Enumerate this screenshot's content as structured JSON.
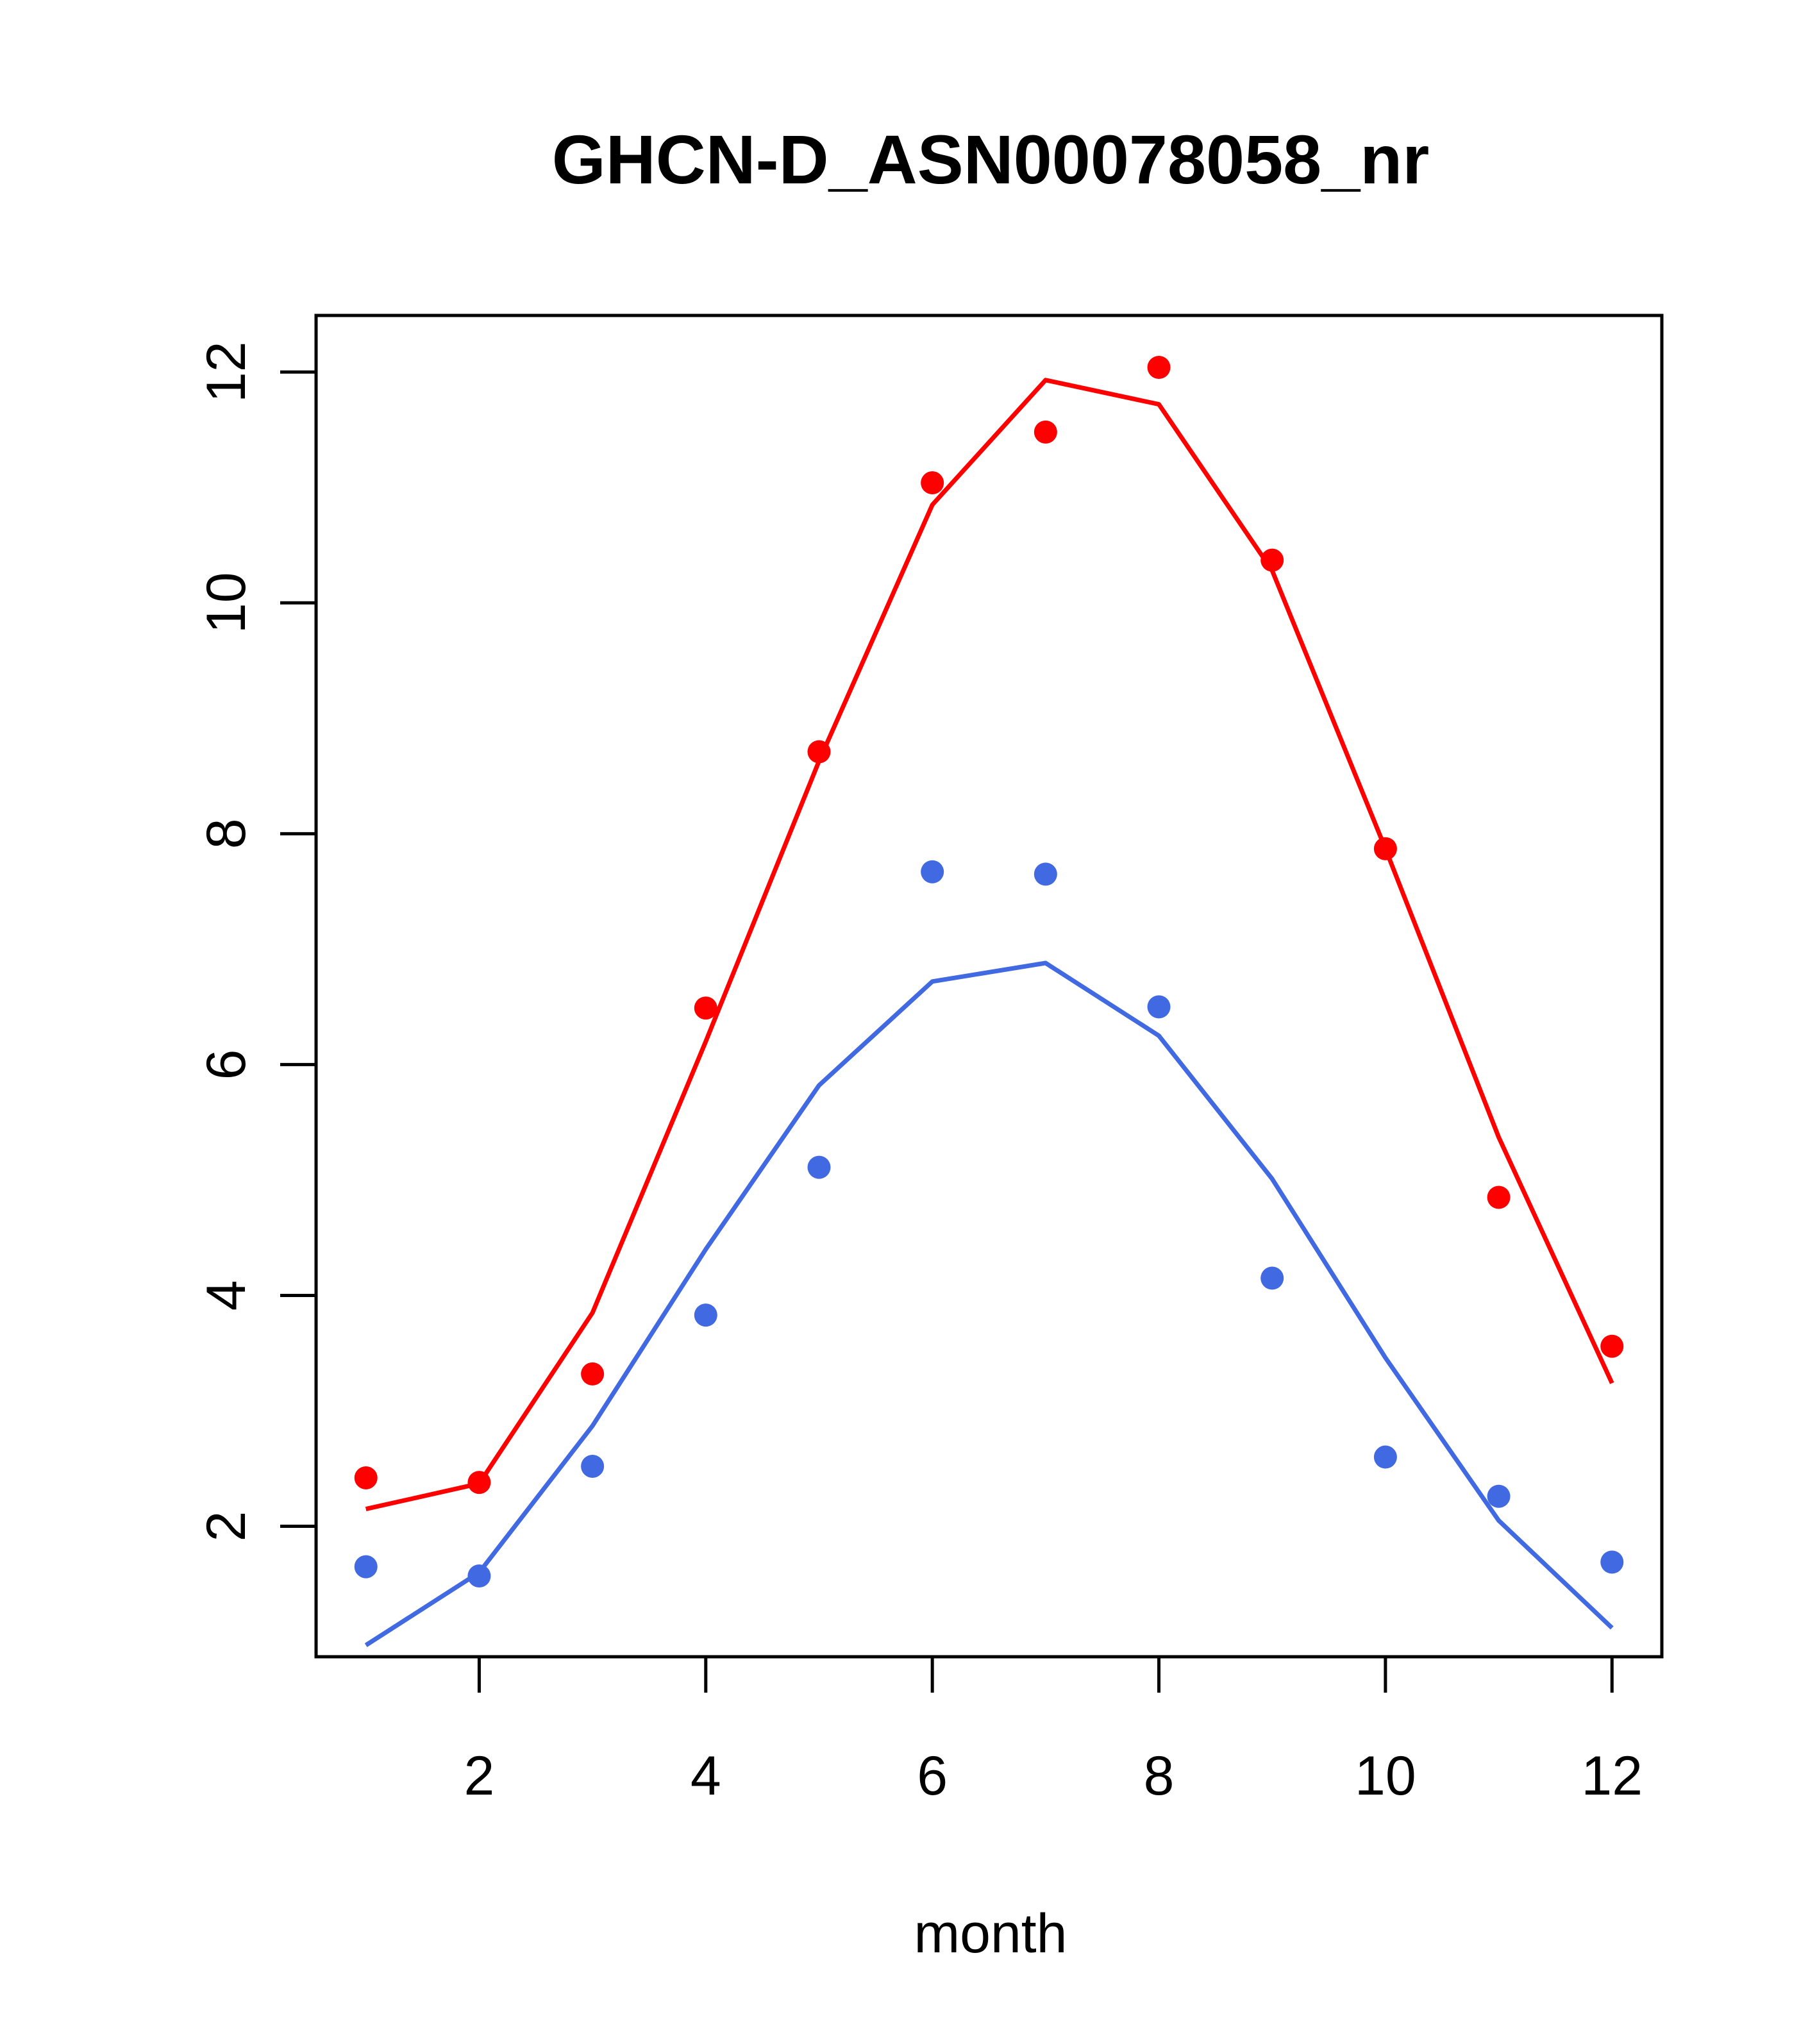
{
  "chart_data": {
    "type": "line",
    "title": "GHCN-D_ASN00078058_nr",
    "xlabel": "month",
    "ylabel": "",
    "xlim": [
      0.56,
      12.44
    ],
    "ylim": [
      0.87,
      12.49
    ],
    "xticks": [
      2,
      4,
      6,
      8,
      10,
      12
    ],
    "yticks": [
      2,
      4,
      6,
      8,
      10,
      12
    ],
    "grid": false,
    "x": [
      1,
      2,
      3,
      4,
      5,
      6,
      7,
      8,
      9,
      10,
      11,
      12
    ],
    "series": [
      {
        "color": "#ff0000",
        "points": [
          2.42,
          2.38,
          3.32,
          6.49,
          8.71,
          11.04,
          11.48,
          12.04,
          10.37,
          7.87,
          4.85,
          3.56
        ],
        "line": [
          2.15,
          2.37,
          3.85,
          6.2,
          8.63,
          10.85,
          11.93,
          11.72,
          10.28,
          7.87,
          5.37,
          3.24
        ]
      },
      {
        "color": "#4169e1",
        "points": [
          1.65,
          1.57,
          2.52,
          3.83,
          5.11,
          7.67,
          7.65,
          6.5,
          4.15,
          2.6,
          2.26,
          1.69
        ],
        "line": [
          0.97,
          1.6,
          2.87,
          4.4,
          5.82,
          6.72,
          6.88,
          6.25,
          5.01,
          3.46,
          2.05,
          1.12
        ]
      }
    ]
  }
}
